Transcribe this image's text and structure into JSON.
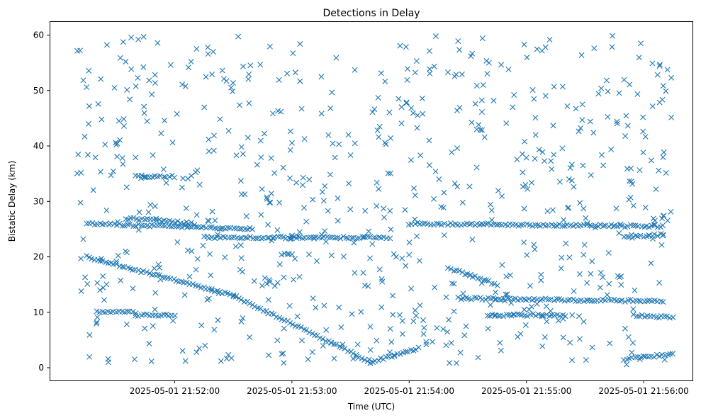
{
  "chart_data": {
    "type": "scatter",
    "title": "Detections in Delay",
    "xlabel": "Time (UTC)",
    "ylabel": "Bistatic Delay (km)",
    "x_ticks": [
      "2025-05-01 21:52:00",
      "2025-05-01 21:53:00",
      "2025-05-01 21:54:00",
      "2025-05-01 21:55:00",
      "2025-05-01 21:56:00"
    ],
    "y_ticks": [
      "0",
      "10",
      "20",
      "30",
      "40",
      "50",
      "60"
    ],
    "xlim": [
      "2025-05-01 21:50:56",
      "2025-05-01 21:56:25"
    ],
    "ylim": [
      -2.3,
      62.5
    ],
    "marker": "x",
    "marker_color": "#1f77b4",
    "grid": false,
    "legend": "none",
    "series": [
      {
        "tracks": [
          {
            "t": [
              "2025-05-01 21:51:15",
              "2025-05-01 21:52:30",
              "2025-05-01 21:53:20",
              "2025-05-01 21:53:40"
            ],
            "delay": [
              20.0,
              13.0,
              4.5,
              1.0
            ]
          },
          {
            "t": [
              "2025-05-01 21:53:40",
              "2025-05-01 21:54:05"
            ],
            "delay": [
              1.0,
              3.5
            ]
          },
          {
            "t": [
              "2025-05-01 21:51:15",
              "2025-05-01 21:52:40"
            ],
            "delay": [
              26.0,
              25.0
            ]
          },
          {
            "t": [
              "2025-05-01 21:51:35",
              "2025-05-01 21:52:10"
            ],
            "delay": [
              27.0,
              26.0
            ]
          },
          {
            "t": [
              "2025-05-01 21:52:15",
              "2025-05-01 21:53:50"
            ],
            "delay": [
              23.5,
              23.5
            ]
          },
          {
            "t": [
              "2025-05-01 21:52:55",
              "2025-05-01 21:53:00"
            ],
            "delay": [
              20.5,
              20.5
            ]
          },
          {
            "t": [
              "2025-05-01 21:54:00",
              "2025-05-01 21:56:10"
            ],
            "delay": [
              26.0,
              25.5
            ]
          },
          {
            "t": [
              "2025-05-01 21:54:20",
              "2025-05-01 21:54:45"
            ],
            "delay": [
              18.0,
              15.0
            ]
          },
          {
            "t": [
              "2025-05-01 21:54:25",
              "2025-05-01 21:56:10"
            ],
            "delay": [
              12.5,
              12.0
            ]
          },
          {
            "t": [
              "2025-05-01 21:54:40",
              "2025-05-01 21:55:20"
            ],
            "delay": [
              9.5,
              9.5
            ]
          },
          {
            "t": [
              "2025-05-01 21:51:20",
              "2025-05-01 21:51:40"
            ],
            "delay": [
              10.0,
              10.0
            ]
          },
          {
            "t": [
              "2025-05-01 21:51:40",
              "2025-05-01 21:52:00"
            ],
            "delay": [
              9.5,
              9.5
            ]
          },
          {
            "t": [
              "2025-05-01 21:51:40",
              "2025-05-01 21:52:00"
            ],
            "delay": [
              34.5,
              34.5
            ]
          },
          {
            "t": [
              "2025-05-01 21:55:55",
              "2025-05-01 21:56:15"
            ],
            "delay": [
              9.5,
              9.0
            ]
          },
          {
            "t": [
              "2025-05-01 21:55:50",
              "2025-05-01 21:56:15"
            ],
            "delay": [
              1.5,
              2.5
            ]
          },
          {
            "t": [
              "2025-05-01 21:55:50",
              "2025-05-01 21:56:10"
            ],
            "delay": [
              23.5,
              24.0
            ]
          }
        ],
        "scattered": {
          "t_range": [
            "2025-05-01 21:51:10",
            "2025-05-01 21:56:15"
          ],
          "delay_range": [
            0.5,
            60.0
          ],
          "approx_count": 700
        }
      }
    ]
  }
}
